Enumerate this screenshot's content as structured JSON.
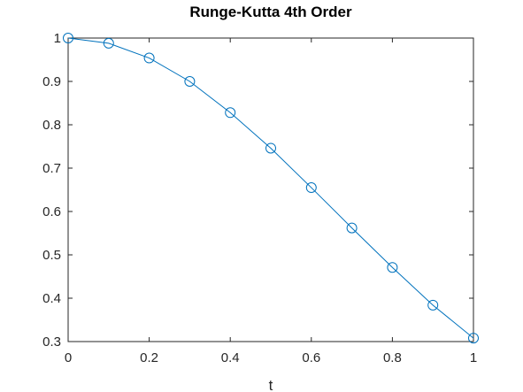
{
  "chart_data": {
    "type": "line",
    "title": "Runge-Kutta 4th Order",
    "xlabel": "t",
    "ylabel": "",
    "xlim": [
      0,
      1
    ],
    "ylim": [
      0.3,
      1
    ],
    "xticks": [
      0,
      0.2,
      0.4,
      0.6,
      0.8,
      1
    ],
    "xtick_labels": [
      "0",
      "0.2",
      "0.4",
      "0.6",
      "0.8",
      "1"
    ],
    "yticks": [
      0.3,
      0.4,
      0.5,
      0.6,
      0.7,
      0.8,
      0.9,
      1
    ],
    "ytick_labels": [
      "0.3",
      "0.4",
      "0.5",
      "0.6",
      "0.7",
      "0.8",
      "0.9",
      "1"
    ],
    "grid": false,
    "marker": "circle",
    "color": "#0072BD",
    "series": [
      {
        "x": [
          0,
          0.1,
          0.2,
          0.3,
          0.4,
          0.5,
          0.6,
          0.7,
          0.8,
          0.9,
          1.0
        ],
        "y": [
          1.0,
          0.988,
          0.954,
          0.9,
          0.828,
          0.746,
          0.655,
          0.562,
          0.471,
          0.384,
          0.308
        ]
      }
    ]
  }
}
